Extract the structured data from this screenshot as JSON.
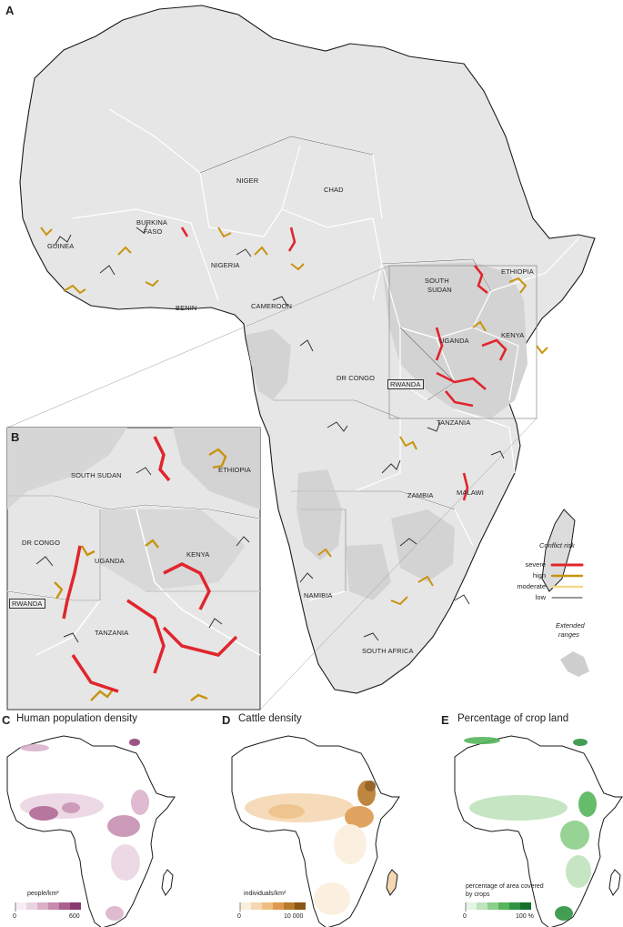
{
  "panels": {
    "a": {
      "letter": "A"
    },
    "b": {
      "letter": "B"
    },
    "c": {
      "letter": "C",
      "title": "Human population density",
      "unit": "people/km²",
      "ticks": [
        "0",
        "600"
      ],
      "colors": [
        "#f6eef3",
        "#ead3e1",
        "#d9b0c8",
        "#c58aae",
        "#ab5f8e",
        "#8a3870"
      ]
    },
    "d": {
      "letter": "D",
      "title": "Cattle density",
      "unit": "individuals/km²",
      "ticks": [
        "0",
        "10 000"
      ],
      "colors": [
        "#fbeedd",
        "#f5d8b2",
        "#eebf83",
        "#dd9a4f",
        "#b97a2c",
        "#8a5616"
      ]
    },
    "e": {
      "letter": "E",
      "title": "Percentage of crop land",
      "unit": "percentage of area covered by crops",
      "ticks": [
        "0",
        "100 %"
      ],
      "colors": [
        "#e6f4e6",
        "#bfe3bd",
        "#8ccf8a",
        "#55b55a",
        "#2f9442",
        "#16702c"
      ]
    }
  },
  "countries": {
    "guinea": "GUINEA",
    "burkina": "BURKINA",
    "faso": "FASO",
    "benin": "BENIN",
    "nigeria": "NIGERIA",
    "niger": "NIGER",
    "chad": "CHAD",
    "cameroon": "CAMEROON",
    "south": "SOUTH",
    "sudan": "SUDAN",
    "ethiopia": "ETHIOPIA",
    "uganda": "UGANDA",
    "kenya": "KENYA",
    "drcongo": "DR CONGO",
    "rwanda": "RWANDA",
    "tanzania": "TANZANIA",
    "zambia": "ZAMBIA",
    "malawi": "MALAWI",
    "namibia": "NAMIBIA",
    "southafrica": "SOUTH AFRICA",
    "southsudan": "SOUTH SUDAN"
  },
  "legend": {
    "title": "Conflict risk",
    "items": [
      {
        "label": "severe",
        "color": "#e0262d"
      },
      {
        "label": "high",
        "color": "#c8940f"
      },
      {
        "label": "moderate",
        "color": "#f2d98a"
      },
      {
        "label": "low",
        "color": "#333333"
      }
    ],
    "extended_line1": "Extended",
    "extended_line2": "ranges"
  },
  "colors": {
    "land": "#e6e6e6",
    "extended": "#d3d3d3",
    "outline": "#1a1a1a",
    "border": "#ffffff"
  }
}
